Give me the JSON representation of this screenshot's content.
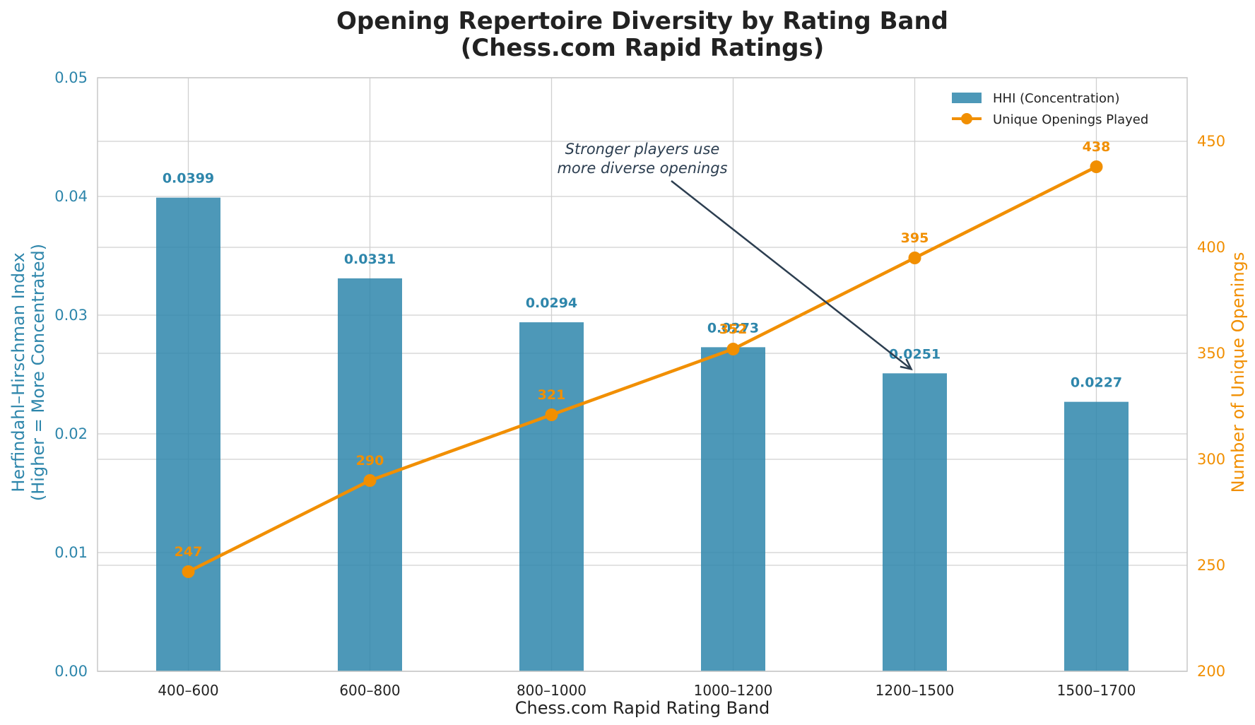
{
  "chart_data": {
    "type": "bar",
    "title": "Opening Repertoire Diversity by Rating Band",
    "subtitle": "(Chess.com Rapid Ratings)",
    "xlabel": "Chess.com Rapid Rating Band",
    "ylabel_left_line1": "Herfindahl–Hirschman Index",
    "ylabel_left_line2": "(Higher = More Concentrated)",
    "ylabel_right": "Number of Unique Openings",
    "categories": [
      "400–600",
      "600–800",
      "800–1000",
      "1000–1200",
      "1200–1500",
      "1500–1700"
    ],
    "ylim_left": [
      0,
      0.05
    ],
    "yticks_left": [
      "0.00",
      "0.01",
      "0.02",
      "0.03",
      "0.04",
      "0.05"
    ],
    "ylim_right": [
      200,
      480
    ],
    "yticks_right": [
      "200",
      "250",
      "300",
      "350",
      "400",
      "450"
    ],
    "grid": true,
    "legend_position": "top-right",
    "series": [
      {
        "name": "HHI (Concentration)",
        "type": "bar",
        "axis": "left",
        "color": "#2E86AB",
        "values": [
          0.0399,
          0.0331,
          0.0294,
          0.0273,
          0.0251,
          0.0227
        ],
        "labels": [
          "0.0399",
          "0.0331",
          "0.0294",
          "0.0273",
          "0.0251",
          "0.0227"
        ]
      },
      {
        "name": "Unique Openings Played",
        "type": "line",
        "axis": "right",
        "color": "#F18F01",
        "values": [
          247,
          290,
          321,
          352,
          395,
          438
        ],
        "labels": [
          "247",
          "290",
          "321",
          "352",
          "395",
          "438"
        ]
      }
    ],
    "annotation": {
      "line1": "Stronger players use",
      "line2": "more diverse openings",
      "target_category": "1200–1500",
      "target_value": 0.0251,
      "color": "#2C3E50"
    }
  }
}
